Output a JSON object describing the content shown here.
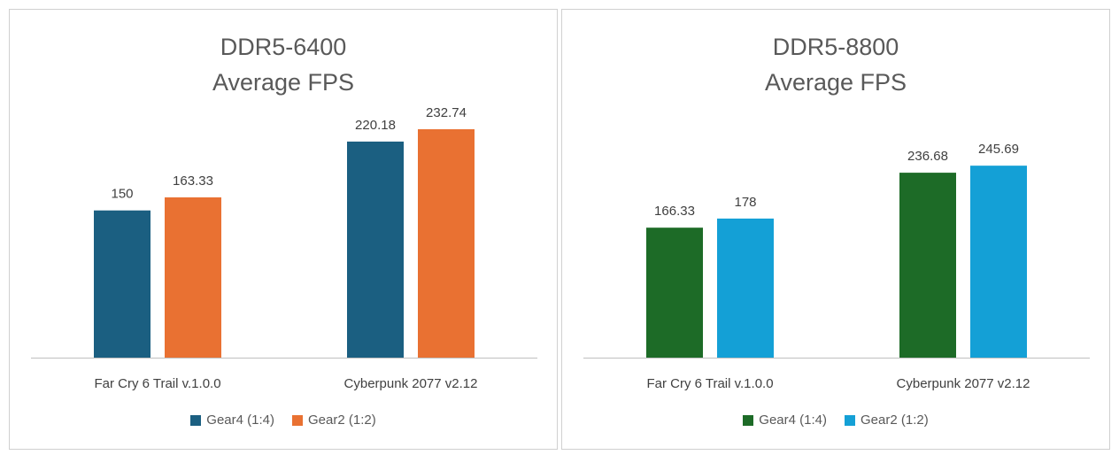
{
  "chart_data": [
    {
      "type": "bar",
      "title": [
        "DDR5-6400",
        "Average FPS"
      ],
      "categories": [
        "Far Cry 6 Trail v.1.0.0",
        "Cyberpunk 2077 v2.12"
      ],
      "series": [
        {
          "name": "Gear4 (1:4)",
          "values": [
            150,
            220.18
          ],
          "labels": [
            "150",
            "220.18"
          ],
          "color": "#1b5f81"
        },
        {
          "name": "Gear2 (1:2)",
          "values": [
            163.33,
            232.74
          ],
          "labels": [
            "163.33",
            "232.74"
          ],
          "color": "#e97132"
        }
      ],
      "ylim": [
        0,
        250
      ],
      "grid": false,
      "legend": "bottom"
    },
    {
      "type": "bar",
      "title": [
        "DDR5-8800",
        "Average FPS"
      ],
      "categories": [
        "Far Cry 6 Trail v.1.0.0",
        "Cyberpunk 2077 v2.12"
      ],
      "series": [
        {
          "name": "Gear4 (1:4)",
          "values": [
            166.33,
            236.68
          ],
          "labels": [
            "166.33",
            "236.68"
          ],
          "color": "#1d6b27"
        },
        {
          "name": "Gear2 (1:2)",
          "values": [
            178,
            245.69
          ],
          "labels": [
            "178",
            "245.69"
          ],
          "color": "#14a0d6"
        }
      ],
      "ylim": [
        0,
        280
      ],
      "grid": false,
      "legend": "bottom"
    }
  ]
}
